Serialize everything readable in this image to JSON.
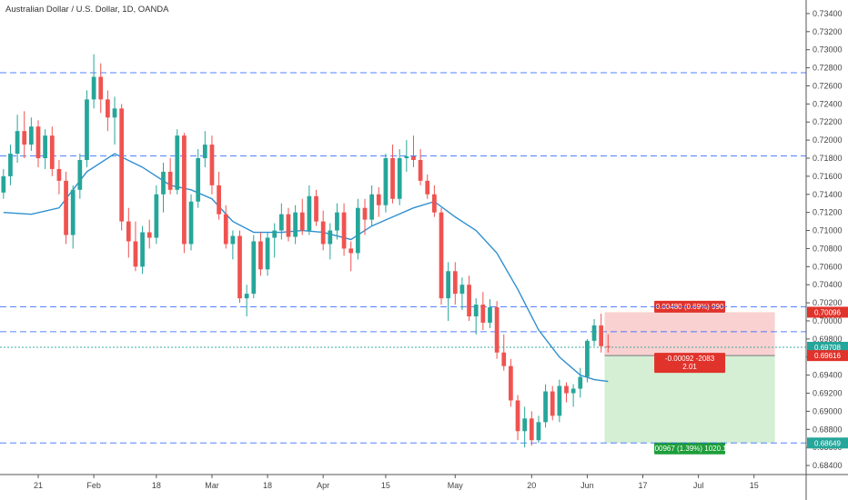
{
  "header": {
    "title": "Australian Dollar / U.S. Dollar, 1D, OANDA"
  },
  "colors": {
    "up": "#26a69a",
    "down": "#ef5350",
    "ma": "#2f8fd1",
    "hline": "#2962ff",
    "current": "#26a69a",
    "stop_zone": "#f8c9c9",
    "target_zone": "#cdeccd"
  },
  "chart_data": {
    "type": "candlestick",
    "symbol": "Australian Dollar / U.S. Dollar",
    "timeframe": "1D",
    "source": "OANDA",
    "y_ticks": [
      "0.73400",
      "0.73200",
      "0.73000",
      "0.72800",
      "0.72600",
      "0.72400",
      "0.72200",
      "0.72000",
      "0.71800",
      "0.71600",
      "0.71400",
      "0.71200",
      "0.71000",
      "0.70800",
      "0.70600",
      "0.70400",
      "0.70200",
      "0.70000",
      "0.69800",
      "0.69600",
      "0.69400",
      "0.69200",
      "0.69000",
      "0.68800",
      "0.68600",
      "0.68400"
    ],
    "x_ticks": [
      {
        "label": "21",
        "bar": 5
      },
      {
        "label": "Feb",
        "bar": 13
      },
      {
        "label": "18",
        "bar": 22
      },
      {
        "label": "Mar",
        "bar": 30
      },
      {
        "label": "18",
        "bar": 38
      },
      {
        "label": "Apr",
        "bar": 46
      },
      {
        "label": "15",
        "bar": 55
      },
      {
        "label": "May",
        "bar": 65
      },
      {
        "label": "20",
        "bar": 76
      },
      {
        "label": "Jun",
        "bar": 84
      },
      {
        "label": "17",
        "bar": 92
      },
      {
        "label": "Jul",
        "bar": 100
      },
      {
        "label": "15",
        "bar": 108
      }
    ],
    "ylim": [
      0.683,
      0.7355
    ],
    "bar_count_visible": 116,
    "candles": [
      [
        0.7142,
        0.7168,
        0.7135,
        0.716
      ],
      [
        0.716,
        0.7195,
        0.715,
        0.7185
      ],
      [
        0.7185,
        0.7228,
        0.7175,
        0.721
      ],
      [
        0.721,
        0.7232,
        0.718,
        0.7195
      ],
      [
        0.7195,
        0.7225,
        0.7188,
        0.7215
      ],
      [
        0.7215,
        0.7222,
        0.717,
        0.718
      ],
      [
        0.718,
        0.7212,
        0.7168,
        0.7205
      ],
      [
        0.7205,
        0.7215,
        0.716,
        0.7168
      ],
      [
        0.7168,
        0.7178,
        0.714,
        0.7155
      ],
      [
        0.7155,
        0.7165,
        0.7085,
        0.7095
      ],
      [
        0.7095,
        0.715,
        0.708,
        0.7145
      ],
      [
        0.7145,
        0.7185,
        0.7135,
        0.7178
      ],
      [
        0.7178,
        0.7255,
        0.717,
        0.7245
      ],
      [
        0.7245,
        0.7295,
        0.7235,
        0.727
      ],
      [
        0.727,
        0.7285,
        0.723,
        0.7245
      ],
      [
        0.7245,
        0.7255,
        0.721,
        0.7225
      ],
      [
        0.7225,
        0.7248,
        0.7195,
        0.7235
      ],
      [
        0.7235,
        0.724,
        0.71,
        0.711
      ],
      [
        0.711,
        0.7125,
        0.707,
        0.7088
      ],
      [
        0.7088,
        0.711,
        0.7055,
        0.706
      ],
      [
        0.706,
        0.7105,
        0.7052,
        0.7098
      ],
      [
        0.7098,
        0.7112,
        0.708,
        0.7092
      ],
      [
        0.7092,
        0.715,
        0.7085,
        0.714
      ],
      [
        0.714,
        0.7175,
        0.712,
        0.7165
      ],
      [
        0.7165,
        0.718,
        0.714,
        0.7145
      ],
      [
        0.7145,
        0.7212,
        0.714,
        0.7205
      ],
      [
        0.7205,
        0.7208,
        0.7075,
        0.7085
      ],
      [
        0.7085,
        0.714,
        0.7078,
        0.7132
      ],
      [
        0.7132,
        0.719,
        0.7125,
        0.718
      ],
      [
        0.718,
        0.721,
        0.717,
        0.7195
      ],
      [
        0.7195,
        0.7205,
        0.714,
        0.715
      ],
      [
        0.715,
        0.7165,
        0.7112,
        0.7118
      ],
      [
        0.7118,
        0.7128,
        0.708,
        0.7085
      ],
      [
        0.7085,
        0.71,
        0.7068,
        0.7094
      ],
      [
        0.7094,
        0.71,
        0.702,
        0.7025
      ],
      [
        0.7025,
        0.704,
        0.7005,
        0.703
      ],
      [
        0.703,
        0.7095,
        0.7025,
        0.7088
      ],
      [
        0.7088,
        0.7098,
        0.705,
        0.7057
      ],
      [
        0.7057,
        0.7098,
        0.705,
        0.7092
      ],
      [
        0.7092,
        0.7108,
        0.707,
        0.71
      ],
      [
        0.71,
        0.713,
        0.709,
        0.7118
      ],
      [
        0.7118,
        0.7125,
        0.7088,
        0.7093
      ],
      [
        0.7093,
        0.7128,
        0.7085,
        0.712
      ],
      [
        0.712,
        0.7135,
        0.7095,
        0.71
      ],
      [
        0.71,
        0.715,
        0.7095,
        0.7138
      ],
      [
        0.7138,
        0.7145,
        0.7105,
        0.711
      ],
      [
        0.711,
        0.7122,
        0.7078,
        0.7085
      ],
      [
        0.7085,
        0.7108,
        0.7068,
        0.71
      ],
      [
        0.71,
        0.713,
        0.709,
        0.712
      ],
      [
        0.712,
        0.713,
        0.7072,
        0.708
      ],
      [
        0.708,
        0.7088,
        0.7055,
        0.7075
      ],
      [
        0.7075,
        0.7135,
        0.7068,
        0.7125
      ],
      [
        0.7125,
        0.7135,
        0.7095,
        0.7112
      ],
      [
        0.7112,
        0.715,
        0.7105,
        0.714
      ],
      [
        0.714,
        0.7148,
        0.7115,
        0.7128
      ],
      [
        0.7128,
        0.7185,
        0.712,
        0.718
      ],
      [
        0.718,
        0.7195,
        0.713,
        0.7135
      ],
      [
        0.7135,
        0.719,
        0.7128,
        0.718
      ],
      [
        0.718,
        0.72,
        0.7165,
        0.7182
      ],
      [
        0.7182,
        0.7205,
        0.717,
        0.7178
      ],
      [
        0.7178,
        0.719,
        0.715,
        0.7155
      ],
      [
        0.7155,
        0.7162,
        0.7135,
        0.714
      ],
      [
        0.714,
        0.715,
        0.7115,
        0.712
      ],
      [
        0.712,
        0.7125,
        0.7018,
        0.7025
      ],
      [
        0.7025,
        0.7065,
        0.7,
        0.7055
      ],
      [
        0.7055,
        0.7065,
        0.7018,
        0.703
      ],
      [
        0.703,
        0.7048,
        0.7012,
        0.704
      ],
      [
        0.704,
        0.705,
        0.7,
        0.7005
      ],
      [
        0.7005,
        0.7025,
        0.6985,
        0.7018
      ],
      [
        0.7018,
        0.7032,
        0.699,
        0.6998
      ],
      [
        0.6998,
        0.7024,
        0.6992,
        0.7015
      ],
      [
        0.7015,
        0.7022,
        0.6958,
        0.6965
      ],
      [
        0.6965,
        0.6985,
        0.6945,
        0.695
      ],
      [
        0.695,
        0.6958,
        0.6905,
        0.6912
      ],
      [
        0.6912,
        0.6918,
        0.6868,
        0.6878
      ],
      [
        0.6878,
        0.6905,
        0.686,
        0.6892
      ],
      [
        0.6892,
        0.69,
        0.6862,
        0.6868
      ],
      [
        0.6868,
        0.6895,
        0.6865,
        0.6888
      ],
      [
        0.6888,
        0.693,
        0.6882,
        0.6922
      ],
      [
        0.6922,
        0.6928,
        0.689,
        0.6895
      ],
      [
        0.6895,
        0.6935,
        0.6888,
        0.6928
      ],
      [
        0.6928,
        0.6932,
        0.691,
        0.692
      ],
      [
        0.692,
        0.693,
        0.6905,
        0.6925
      ],
      [
        0.6925,
        0.6948,
        0.6915,
        0.6938
      ],
      [
        0.6938,
        0.698,
        0.6932,
        0.6978
      ],
      [
        0.6978,
        0.7002,
        0.6972,
        0.6995
      ],
      [
        0.6995,
        0.7008,
        0.6965,
        0.6972
      ],
      [
        0.6972,
        0.6985,
        0.6965,
        0.6971
      ]
    ],
    "moving_average": {
      "label": "",
      "points": [
        [
          0,
          0.712
        ],
        [
          4,
          0.7118
        ],
        [
          8,
          0.7125
        ],
        [
          12,
          0.7165
        ],
        [
          16,
          0.7185
        ],
        [
          20,
          0.717
        ],
        [
          24,
          0.715
        ],
        [
          27,
          0.7145
        ],
        [
          30,
          0.7135
        ],
        [
          33,
          0.711
        ],
        [
          36,
          0.7098
        ],
        [
          40,
          0.7098
        ],
        [
          43,
          0.71
        ],
        [
          46,
          0.7098
        ],
        [
          50,
          0.709
        ],
        [
          53,
          0.7105
        ],
        [
          56,
          0.7115
        ],
        [
          59,
          0.7125
        ],
        [
          62,
          0.7132
        ],
        [
          65,
          0.7115
        ],
        [
          68,
          0.71
        ],
        [
          71,
          0.7075
        ],
        [
          74,
          0.7035
        ],
        [
          77,
          0.699
        ],
        [
          80,
          0.696
        ],
        [
          83,
          0.694
        ],
        [
          85,
          0.6935
        ],
        [
          87,
          0.6933
        ]
      ]
    },
    "horizontal_lines": [
      0.72745,
      0.71825,
      0.70155,
      0.6988,
      0.69708,
      0.68649
    ],
    "position": {
      "type": "short",
      "start_bar": 87,
      "end_bar": 111,
      "stop": 0.70096,
      "entry": 0.69616,
      "target": 0.68649,
      "stop_label": "0.00480 (0.69%) 990",
      "entry_label_line1": "-0.00092 -2083",
      "entry_label_line2": "2.01",
      "target_label": "0.00967 (1.39%) 1020.14"
    },
    "price_tags": [
      {
        "value": 0.70096,
        "label": "0.70096",
        "color": "#e0332b"
      },
      {
        "value": 0.69708,
        "label": "0.69708",
        "color": "#26a69a"
      },
      {
        "value": 0.69616,
        "label": "0.69616",
        "color": "#e0332b"
      },
      {
        "value": 0.68649,
        "label": "0.68649",
        "color": "#26a69a"
      }
    ]
  }
}
